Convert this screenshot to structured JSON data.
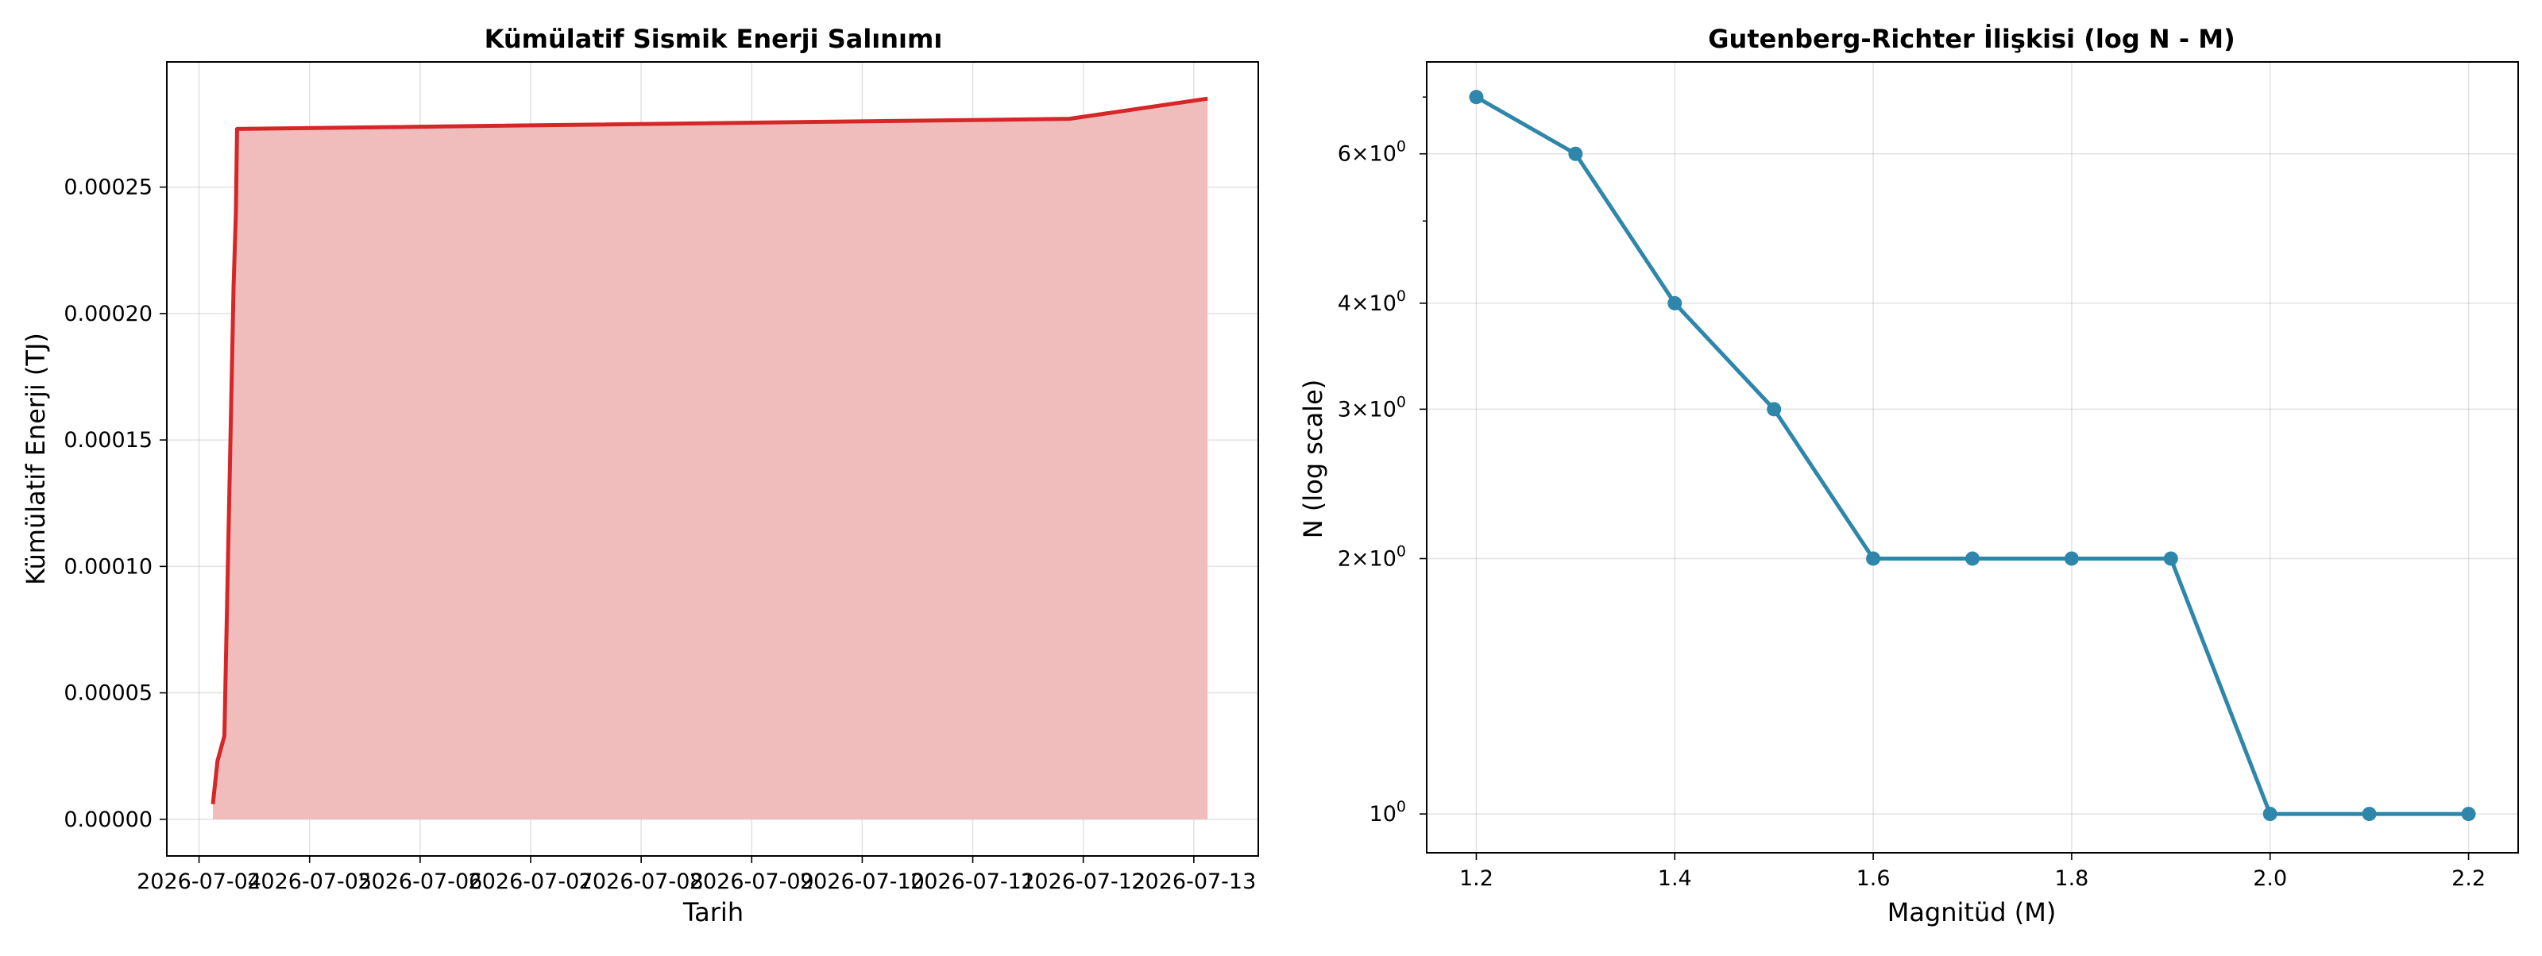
{
  "chart_data": [
    {
      "type": "area",
      "title": "Kümülatif Sismik Enerji Salınımı",
      "xlabel": "Tarih",
      "ylabel": "Kümülatif Enerji (TJ)",
      "x_ticks": [
        "2026-07-04",
        "2026-07-05",
        "2026-07-06",
        "2026-07-07",
        "2026-07-08",
        "2026-07-09",
        "2026-07-10",
        "2026-07-11",
        "2026-07-12",
        "2026-07-13"
      ],
      "y_ticks": [
        "0.00000",
        "0.00005",
        "0.00010",
        "0.00015",
        "0.00020",
        "0.00025"
      ],
      "xlim": [
        "2026-07-03T17:00",
        "2026-07-13T14:00"
      ],
      "ylim": [
        -1.45e-05,
        0.0002995
      ],
      "grid": true,
      "series": [
        {
          "color": "#d62728",
          "fill": "#f0bcbc",
          "points": [
            {
              "x": "2026-07-04T03:00",
              "y": 6e-06
            },
            {
              "x": "2026-07-04T04:00",
              "y": 2.3e-05
            },
            {
              "x": "2026-07-04T05:30",
              "y": 3.3e-05
            },
            {
              "x": "2026-07-04T07:30",
              "y": 0.000211
            },
            {
              "x": "2026-07-04T08:00",
              "y": 0.00024
            },
            {
              "x": "2026-07-04T08:15",
              "y": 0.000273
            },
            {
              "x": "2026-07-11T21:00",
              "y": 0.000277
            },
            {
              "x": "2026-07-13T03:00",
              "y": 0.000285
            }
          ]
        }
      ]
    },
    {
      "type": "line",
      "title": "Gutenberg-Richter İlişkisi (log N - M)",
      "xlabel": "Magnitüd (M)",
      "ylabel": "N (log scale)",
      "yscale": "log",
      "x_ticks": [
        "1.2",
        "1.4",
        "1.6",
        "1.8",
        "2.0",
        "2.2"
      ],
      "y_ticks": [
        {
          "value": 1,
          "base": "10",
          "exp": "0",
          "coef": ""
        },
        {
          "value": 2,
          "base": "10",
          "exp": "0",
          "coef": "2×"
        },
        {
          "value": 3,
          "base": "10",
          "exp": "0",
          "coef": "3×"
        },
        {
          "value": 4,
          "base": "10",
          "exp": "0",
          "coef": "4×"
        },
        {
          "value": 6,
          "base": "10",
          "exp": "0",
          "coef": "6×"
        }
      ],
      "xlim": [
        1.15,
        2.25
      ],
      "ylim": [
        0.9,
        7.7
      ],
      "grid": true,
      "series": [
        {
          "color": "#2e86ab",
          "x": [
            1.2,
            1.3,
            1.4,
            1.5,
            1.6,
            1.7,
            1.8,
            1.9,
            2.0,
            2.1,
            2.2
          ],
          "y": [
            7,
            6,
            4,
            3,
            2,
            2,
            2,
            2,
            1,
            1,
            1
          ]
        }
      ]
    }
  ]
}
